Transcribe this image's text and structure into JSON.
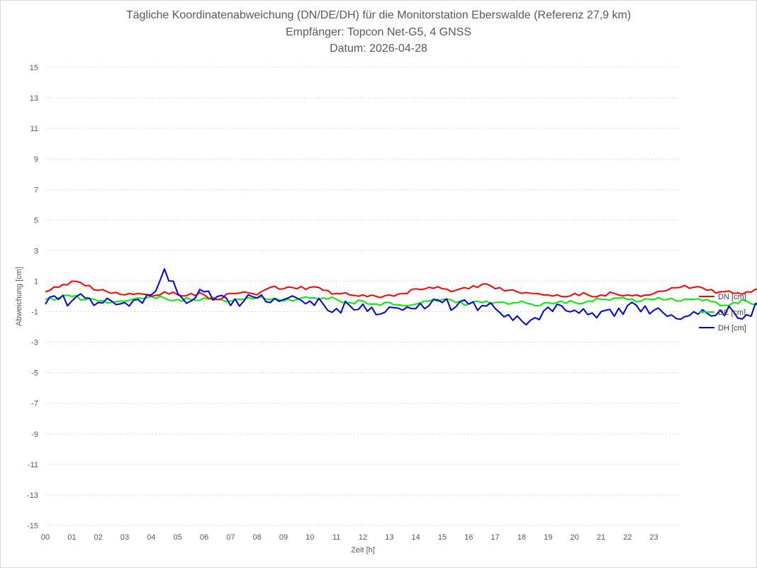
{
  "chart_data": {
    "type": "line",
    "title_lines": [
      "Tägliche Koordinatenabweichung (DN/DE/DH) für die Monitorstation Eberswalde (Referenz 27,9 km)",
      "Empfänger: Topcon Net-G5, 4 GNSS",
      "Datum: 2026-04-28"
    ],
    "xlabel": "Zeit [h]",
    "ylabel": "Abweichung [cm]",
    "xlim": [
      0,
      24
    ],
    "ylim": [
      -15,
      15
    ],
    "x_ticks": [
      "00",
      "01",
      "02",
      "03",
      "04",
      "05",
      "06",
      "07",
      "08",
      "09",
      "10",
      "11",
      "12",
      "13",
      "14",
      "15",
      "16",
      "17",
      "18",
      "19",
      "20",
      "21",
      "22",
      "23"
    ],
    "y_ticks": [
      "15",
      "13",
      "11",
      "9",
      "7",
      "5",
      "3",
      "1",
      "-1",
      "-3",
      "-5",
      "-7",
      "-9",
      "-11",
      "-13",
      "-15"
    ],
    "grid": "horizontal dotted",
    "legend_position": "right",
    "x_step_hours": 0.5,
    "series": [
      {
        "name": "DN [cm]",
        "color": "#ff0000",
        "values": [
          0.3,
          0.6,
          1.0,
          0.7,
          0.4,
          0.2,
          0.1,
          0.2,
          0.0,
          0.3,
          0.1,
          0.2,
          0.1,
          -0.2,
          0.2,
          0.3,
          0.1,
          0.6,
          0.5,
          0.5,
          0.6,
          0.4,
          0.2,
          0.1,
          0.1,
          0.0,
          0.1,
          0.2,
          0.5,
          0.6,
          0.5,
          0.4,
          0.5,
          0.8,
          0.5,
          0.4,
          0.2,
          0.2,
          0.1,
          0.0,
          0.2,
          0.1,
          0.1,
          0.2,
          0.1,
          0.0,
          0.2,
          0.4,
          0.6,
          0.6,
          0.4,
          0.3,
          0.2,
          0.3,
          0.4,
          0.2,
          0.4,
          0.2,
          0.1,
          0.2,
          0.3,
          0.4,
          0.2,
          0.2,
          0.1,
          0.2,
          0.1,
          -0.2,
          0.2,
          0.0,
          0.1,
          0.0,
          0.2,
          0.3,
          0.4,
          0.5,
          0.5,
          0.6,
          0.5,
          0.4,
          0.4,
          0.4,
          0.3,
          0.2,
          0.1,
          0.2,
          0.2,
          -0.1,
          0.0,
          0.3,
          0.5,
          0.4,
          0.4,
          0.3,
          0.2,
          0.1,
          0.0
        ]
      },
      {
        "name": "DE [cm]",
        "color": "#00ee00",
        "values": [
          -0.2,
          -0.1,
          0.0,
          -0.2,
          -0.3,
          -0.4,
          -0.3,
          -0.1,
          0.0,
          -0.1,
          -0.2,
          -0.2,
          -0.1,
          -0.2,
          -0.3,
          -0.2,
          -0.1,
          -0.2,
          -0.3,
          -0.2,
          -0.1,
          -0.1,
          -0.2,
          -0.4,
          -0.3,
          -0.5,
          -0.4,
          -0.6,
          -0.5,
          -0.3,
          -0.2,
          -0.4,
          -0.5,
          -0.4,
          -0.4,
          -0.5,
          -0.3,
          -0.6,
          -0.4,
          -0.3,
          -0.4,
          -0.3,
          -0.2,
          -0.1,
          -0.2,
          -0.3,
          -0.2,
          -0.2,
          -0.3,
          -0.2,
          -0.2,
          -0.6,
          -0.4,
          -0.3,
          -0.5,
          -0.4,
          -0.3,
          -0.2,
          -0.1,
          0.0,
          0.2,
          0.3,
          0.2,
          0.0,
          0.1,
          -0.1,
          -0.1,
          -0.2,
          -0.3,
          -0.4,
          -0.3,
          -0.2,
          -0.3,
          -0.2,
          -0.3,
          -0.2,
          -0.3,
          -0.3,
          -0.4,
          -0.3,
          -0.4,
          -0.4,
          -0.4,
          -0.4,
          -0.3,
          -0.4,
          -0.3,
          -0.2,
          -0.2,
          -0.3,
          -0.2,
          -0.3,
          -0.3,
          -0.2,
          -0.3,
          -0.3,
          -0.4
        ]
      },
      {
        "name": "DH [cm]",
        "color": "#0000dd",
        "values": [
          -0.5,
          -0.2,
          -0.3,
          -0.1,
          -0.4,
          -0.3,
          -0.4,
          -0.2,
          0.1,
          1.8,
          0.2,
          -0.3,
          0.3,
          0.0,
          -0.6,
          -0.3,
          -0.1,
          -0.4,
          -0.2,
          -0.1,
          -0.3,
          -0.5,
          -0.8,
          -0.6,
          -0.5,
          -1.2,
          -0.7,
          -0.9,
          -0.8,
          -0.6,
          -0.4,
          -0.7,
          -0.5,
          -0.6,
          -0.8,
          -1.2,
          -1.6,
          -1.4,
          -0.7,
          -0.6,
          -0.9,
          -1.2,
          -1.0,
          -1.3,
          -0.6,
          -1.0,
          -0.9,
          -1.3,
          -1.5,
          -1.0,
          -1.1,
          -0.9,
          -1.0,
          -1.2,
          -0.6,
          1.6,
          -0.5,
          -0.9,
          -0.6,
          -0.8,
          -1.0,
          -1.4,
          -1.9,
          -1.5,
          -1.2,
          -1.1,
          -0.6,
          -0.9,
          -0.8,
          -0.5,
          -0.7,
          -1.0,
          -0.3,
          -0.9,
          -1.3,
          -1.7,
          -2.0,
          -2.1,
          -2.2,
          -1.9,
          -1.6,
          -2.0,
          -1.5,
          -0.8,
          -0.2,
          0.4,
          0.6,
          0.3,
          0.2,
          0.4,
          0.3,
          0.1,
          -0.2,
          -0.3,
          -0.5,
          -0.4,
          -0.3
        ]
      }
    ]
  }
}
